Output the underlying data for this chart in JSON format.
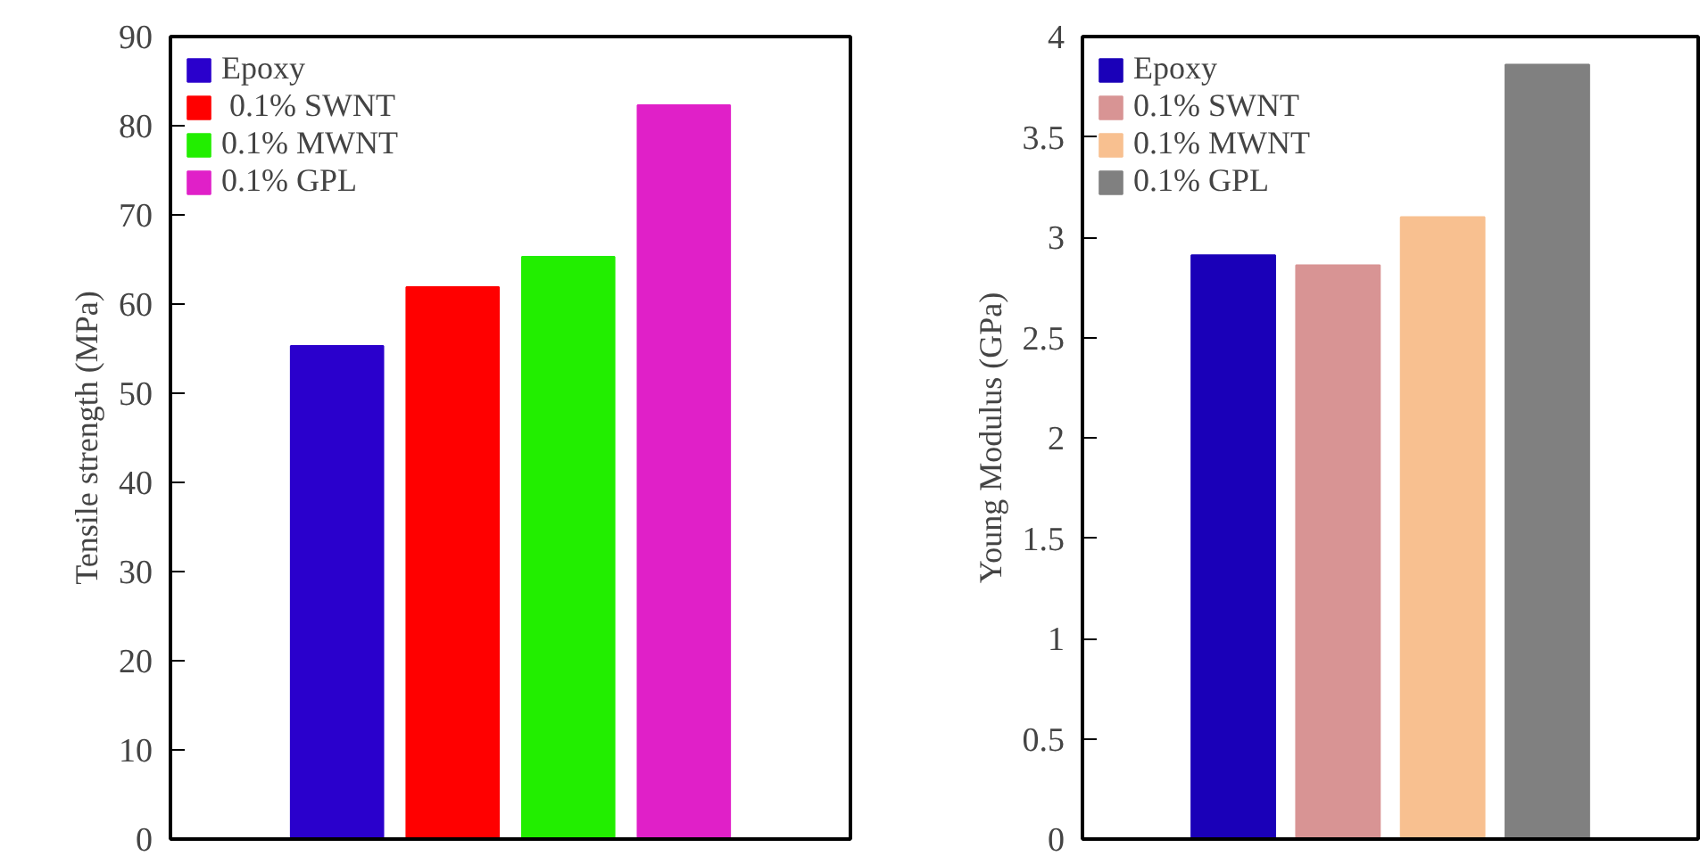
{
  "chart_data": [
    {
      "type": "bar",
      "ylabel": "Tensile strength (MPa)",
      "categories": [
        null
      ],
      "ylim": [
        0,
        90
      ],
      "yticks": [
        0,
        10,
        20,
        30,
        40,
        50,
        60,
        70,
        80,
        90
      ],
      "grid": false,
      "legend": "top left",
      "series": [
        {
          "name": "Epoxy",
          "color": "#2a00cc",
          "values": [
            55.3
          ]
        },
        {
          "name": " 0.1% SWNT",
          "color": "#ff0000",
          "values": [
            61.9
          ]
        },
        {
          "name": "0.1% MWNT",
          "color": "#22ee00",
          "values": [
            65.3
          ]
        },
        {
          "name": "0.1% GPL",
          "color": "#e020c8",
          "values": [
            82.3
          ]
        }
      ]
    },
    {
      "type": "bar",
      "ylabel": "Young Modulus (GPa)",
      "categories": [
        null
      ],
      "ylim": [
        0,
        4
      ],
      "yticks": [
        0,
        0.5,
        1,
        1.5,
        2,
        2.5,
        3,
        3.5,
        4
      ],
      "grid": false,
      "legend": "top left",
      "series": [
        {
          "name": "Epoxy",
          "color": "#1a00b8",
          "values": [
            2.91
          ]
        },
        {
          "name": "0.1% SWNT",
          "color": "#d89494",
          "values": [
            2.86
          ]
        },
        {
          "name": "0.1% MWNT",
          "color": "#f8c090",
          "values": [
            3.1
          ]
        },
        {
          "name": "0.1% GPL",
          "color": "#808080",
          "values": [
            3.86
          ]
        }
      ]
    }
  ]
}
